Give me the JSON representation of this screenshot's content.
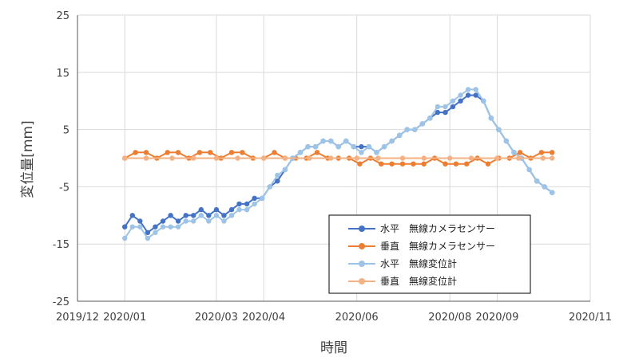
{
  "chart_data": {
    "type": "line",
    "title": "",
    "xlabel": "時間",
    "ylabel": "変位量[mm]",
    "ylim": [
      -25,
      25
    ],
    "yticks": [
      25,
      15,
      5,
      -5,
      -15,
      -25
    ],
    "xlim": [
      "2019-12-01",
      "2020-11-01"
    ],
    "xticks": [
      {
        "date": "2019-12-01",
        "label": "2019/12"
      },
      {
        "date": "2020-01-01",
        "label": "2020/01"
      },
      {
        "date": "2020-03-01",
        "label": "2020/03"
      },
      {
        "date": "2020-04-01",
        "label": "2020/04"
      },
      {
        "date": "2020-06-01",
        "label": "2020/06"
      },
      {
        "date": "2020-08-01",
        "label": "2020/08"
      },
      {
        "date": "2020-09-01",
        "label": "2020/09"
      },
      {
        "date": "2020-11-01",
        "label": "2020/11"
      }
    ],
    "grid": true,
    "legend_position": "bottom-right",
    "series": [
      {
        "name": "水平　無線カメラセンサー",
        "color": "#4472C4",
        "points": [
          [
            "2020-01-01",
            -12
          ],
          [
            "2020-01-06",
            -10
          ],
          [
            "2020-01-11",
            -11
          ],
          [
            "2020-01-16",
            -13
          ],
          [
            "2020-01-21",
            -12
          ],
          [
            "2020-01-26",
            -11
          ],
          [
            "2020-01-31",
            -10
          ],
          [
            "2020-02-05",
            -11
          ],
          [
            "2020-02-10",
            -10
          ],
          [
            "2020-02-15",
            -10
          ],
          [
            "2020-02-20",
            -9
          ],
          [
            "2020-02-25",
            -10
          ],
          [
            "2020-03-01",
            -9
          ],
          [
            "2020-03-06",
            -10
          ],
          [
            "2020-03-11",
            -9
          ],
          [
            "2020-03-16",
            -8
          ],
          [
            "2020-03-21",
            -8
          ],
          [
            "2020-03-26",
            -7
          ],
          [
            "2020-03-31",
            -7
          ],
          [
            "2020-04-05",
            -5
          ],
          [
            "2020-04-10",
            -4
          ],
          [
            "2020-04-15",
            -2
          ],
          [
            "2020-04-20",
            0
          ],
          [
            "2020-04-25",
            1
          ],
          [
            "2020-04-30",
            2
          ],
          [
            "2020-05-05",
            2
          ],
          [
            "2020-05-10",
            3
          ],
          [
            "2020-05-15",
            3
          ],
          [
            "2020-05-20",
            2
          ],
          [
            "2020-05-25",
            3
          ],
          [
            "2020-05-30",
            2
          ],
          [
            "2020-06-04",
            2
          ],
          [
            "2020-06-09",
            2
          ],
          [
            "2020-06-14",
            1
          ],
          [
            "2020-06-19",
            2
          ],
          [
            "2020-06-24",
            3
          ],
          [
            "2020-06-29",
            4
          ],
          [
            "2020-07-04",
            5
          ],
          [
            "2020-07-09",
            5
          ],
          [
            "2020-07-14",
            6
          ],
          [
            "2020-07-19",
            7
          ],
          [
            "2020-07-24",
            8
          ],
          [
            "2020-07-29",
            8
          ],
          [
            "2020-08-03",
            9
          ],
          [
            "2020-08-08",
            10
          ],
          [
            "2020-08-13",
            11
          ],
          [
            "2020-08-18",
            11
          ],
          [
            "2020-08-23",
            10
          ],
          [
            "2020-08-28",
            7
          ],
          [
            "2020-09-02",
            5
          ],
          [
            "2020-09-07",
            3
          ],
          [
            "2020-09-12",
            1
          ],
          [
            "2020-09-17",
            0
          ],
          [
            "2020-09-22",
            -2
          ],
          [
            "2020-09-27",
            -4
          ],
          [
            "2020-10-02",
            -5
          ],
          [
            "2020-10-07",
            -6
          ]
        ]
      },
      {
        "name": "垂直　無線カメラセンサー",
        "color": "#ED7D31",
        "points": [
          [
            "2020-01-01",
            0
          ],
          [
            "2020-01-08",
            1
          ],
          [
            "2020-01-15",
            1
          ],
          [
            "2020-01-22",
            0
          ],
          [
            "2020-01-29",
            1
          ],
          [
            "2020-02-05",
            1
          ],
          [
            "2020-02-12",
            0
          ],
          [
            "2020-02-19",
            1
          ],
          [
            "2020-02-26",
            1
          ],
          [
            "2020-03-04",
            0
          ],
          [
            "2020-03-11",
            1
          ],
          [
            "2020-03-18",
            1
          ],
          [
            "2020-03-25",
            0
          ],
          [
            "2020-04-01",
            0
          ],
          [
            "2020-04-08",
            1
          ],
          [
            "2020-04-15",
            0
          ],
          [
            "2020-04-22",
            0
          ],
          [
            "2020-04-29",
            0
          ],
          [
            "2020-05-06",
            1
          ],
          [
            "2020-05-13",
            0
          ],
          [
            "2020-05-20",
            0
          ],
          [
            "2020-05-27",
            0
          ],
          [
            "2020-06-03",
            -1
          ],
          [
            "2020-06-10",
            0
          ],
          [
            "2020-06-17",
            -1
          ],
          [
            "2020-06-24",
            -1
          ],
          [
            "2020-07-01",
            -1
          ],
          [
            "2020-07-08",
            -1
          ],
          [
            "2020-07-15",
            -1
          ],
          [
            "2020-07-22",
            0
          ],
          [
            "2020-07-29",
            -1
          ],
          [
            "2020-08-05",
            -1
          ],
          [
            "2020-08-12",
            -1
          ],
          [
            "2020-08-19",
            0
          ],
          [
            "2020-08-26",
            -1
          ],
          [
            "2020-09-02",
            0
          ],
          [
            "2020-09-09",
            0
          ],
          [
            "2020-09-16",
            1
          ],
          [
            "2020-09-23",
            0
          ],
          [
            "2020-09-30",
            1
          ],
          [
            "2020-10-07",
            1
          ]
        ]
      },
      {
        "name": "水平　無線変位計",
        "color": "#9DC3E6",
        "points": [
          [
            "2020-01-01",
            -14
          ],
          [
            "2020-01-06",
            -12
          ],
          [
            "2020-01-11",
            -12
          ],
          [
            "2020-01-16",
            -14
          ],
          [
            "2020-01-21",
            -13
          ],
          [
            "2020-01-26",
            -12
          ],
          [
            "2020-01-31",
            -12
          ],
          [
            "2020-02-05",
            -12
          ],
          [
            "2020-02-10",
            -11
          ],
          [
            "2020-02-15",
            -11
          ],
          [
            "2020-02-20",
            -10
          ],
          [
            "2020-02-25",
            -11
          ],
          [
            "2020-03-01",
            -10
          ],
          [
            "2020-03-06",
            -11
          ],
          [
            "2020-03-11",
            -10
          ],
          [
            "2020-03-16",
            -9
          ],
          [
            "2020-03-21",
            -9
          ],
          [
            "2020-03-26",
            -8
          ],
          [
            "2020-03-31",
            -7
          ],
          [
            "2020-04-05",
            -5
          ],
          [
            "2020-04-10",
            -3
          ],
          [
            "2020-04-15",
            -2
          ],
          [
            "2020-04-20",
            0
          ],
          [
            "2020-04-25",
            1
          ],
          [
            "2020-04-30",
            2
          ],
          [
            "2020-05-05",
            2
          ],
          [
            "2020-05-10",
            3
          ],
          [
            "2020-05-15",
            3
          ],
          [
            "2020-05-20",
            2
          ],
          [
            "2020-05-25",
            3
          ],
          [
            "2020-05-30",
            2
          ],
          [
            "2020-06-04",
            1
          ],
          [
            "2020-06-09",
            2
          ],
          [
            "2020-06-14",
            1
          ],
          [
            "2020-06-19",
            2
          ],
          [
            "2020-06-24",
            3
          ],
          [
            "2020-06-29",
            4
          ],
          [
            "2020-07-04",
            5
          ],
          [
            "2020-07-09",
            5
          ],
          [
            "2020-07-14",
            6
          ],
          [
            "2020-07-19",
            7
          ],
          [
            "2020-07-24",
            9
          ],
          [
            "2020-07-29",
            9
          ],
          [
            "2020-08-03",
            10
          ],
          [
            "2020-08-08",
            11
          ],
          [
            "2020-08-13",
            12
          ],
          [
            "2020-08-18",
            12
          ],
          [
            "2020-08-23",
            10
          ],
          [
            "2020-08-28",
            7
          ],
          [
            "2020-09-02",
            5
          ],
          [
            "2020-09-07",
            3
          ],
          [
            "2020-09-12",
            1
          ],
          [
            "2020-09-17",
            0
          ],
          [
            "2020-09-22",
            -2
          ],
          [
            "2020-09-27",
            -4
          ],
          [
            "2020-10-02",
            -5
          ],
          [
            "2020-10-07",
            -6
          ]
        ]
      },
      {
        "name": "垂直　無線変位計",
        "color": "#F4B183",
        "points": [
          [
            "2020-01-01",
            0
          ],
          [
            "2020-01-15",
            0
          ],
          [
            "2020-02-01",
            0
          ],
          [
            "2020-02-15",
            0
          ],
          [
            "2020-03-01",
            0
          ],
          [
            "2020-03-15",
            0
          ],
          [
            "2020-04-01",
            0
          ],
          [
            "2020-04-15",
            0
          ],
          [
            "2020-05-01",
            0
          ],
          [
            "2020-05-15",
            0
          ],
          [
            "2020-06-01",
            0
          ],
          [
            "2020-06-15",
            0
          ],
          [
            "2020-07-01",
            0
          ],
          [
            "2020-07-15",
            0
          ],
          [
            "2020-08-01",
            0
          ],
          [
            "2020-08-15",
            0
          ],
          [
            "2020-09-01",
            0
          ],
          [
            "2020-09-15",
            0
          ],
          [
            "2020-10-01",
            0
          ],
          [
            "2020-10-07",
            0
          ]
        ]
      }
    ]
  }
}
